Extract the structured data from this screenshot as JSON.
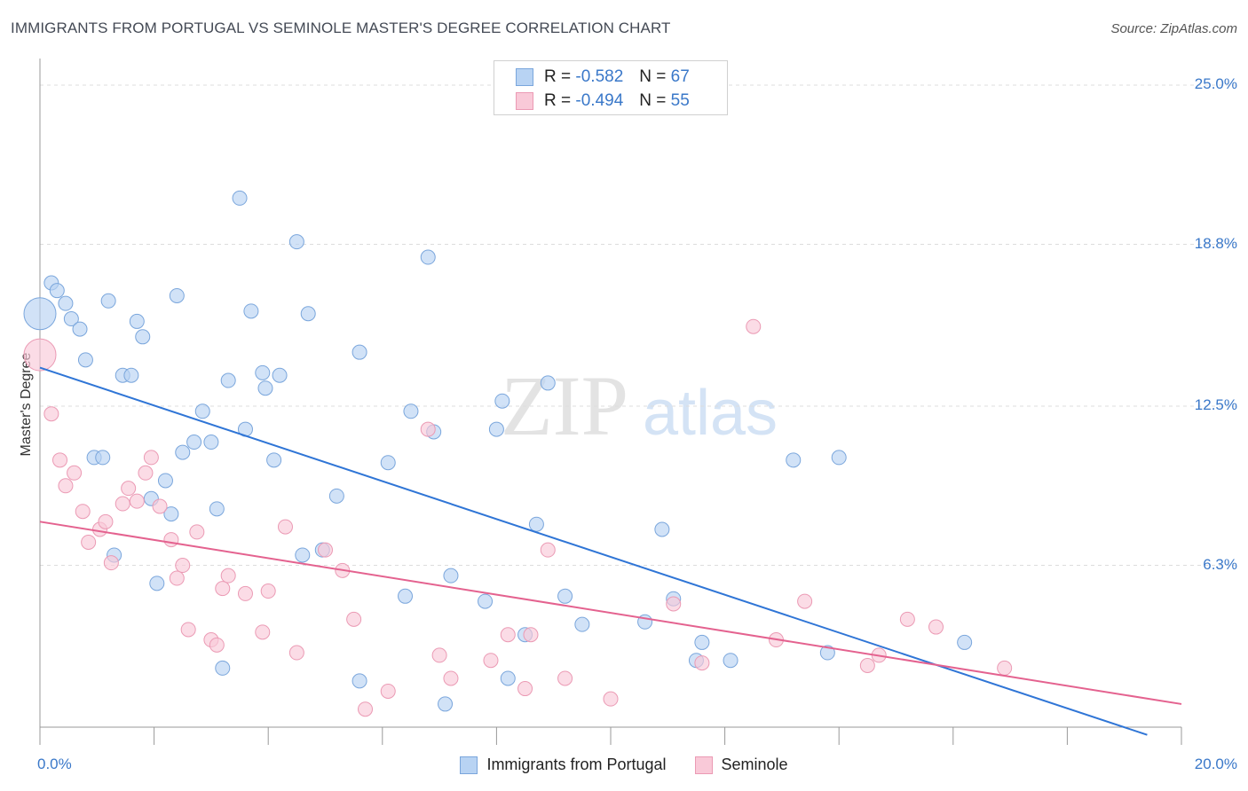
{
  "title": "IMMIGRANTS FROM PORTUGAL VS SEMINOLE MASTER'S DEGREE CORRELATION CHART",
  "source": "Source: ZipAtlas.com",
  "watermark": {
    "zip": "ZIP",
    "atlas": "atlas"
  },
  "colors": {
    "blue_fill": "#b8d3f3",
    "blue_stroke": "#7aa6dc",
    "blue_line": "#2f75d6",
    "pink_fill": "#f9c9d8",
    "pink_stroke": "#eb9ab4",
    "pink_line": "#e4628f",
    "axis_text": "#3a78c9",
    "grid": "#dddddd"
  },
  "legend": {
    "rows": [
      {
        "r_label": "R =",
        "r_value": "-0.582",
        "n_label": "N =",
        "n_value": "67",
        "series": "blue"
      },
      {
        "r_label": "R =",
        "r_value": "-0.494",
        "n_label": "N =",
        "n_value": "55",
        "series": "pink"
      }
    ]
  },
  "chart_data": {
    "type": "scatter",
    "title": "IMMIGRANTS FROM PORTUGAL VS SEMINOLE MASTER'S DEGREE CORRELATION CHART",
    "xlabel": "",
    "ylabel": "Master's Degree",
    "xlim": [
      0,
      20
    ],
    "ylim": [
      0,
      25
    ],
    "x_ticks": [
      "0.0%",
      "20.0%"
    ],
    "y_ticks": [
      {
        "value": 25.0,
        "label": "25.0%"
      },
      {
        "value": 18.8,
        "label": "18.8%"
      },
      {
        "value": 12.5,
        "label": "12.5%"
      },
      {
        "value": 6.3,
        "label": "6.3%"
      }
    ],
    "grid": true,
    "legend_position": "top-center",
    "series": [
      {
        "name": "Immigrants from Portugal",
        "color": "#b8d3f3",
        "trend": {
          "x": [
            0,
            19.4
          ],
          "y": [
            14.0,
            -0.3
          ]
        },
        "points": [
          {
            "x": 0.0,
            "y": 16.1,
            "big": true
          },
          {
            "x": 0.2,
            "y": 17.3
          },
          {
            "x": 0.3,
            "y": 17.0
          },
          {
            "x": 0.45,
            "y": 16.5
          },
          {
            "x": 0.55,
            "y": 15.9
          },
          {
            "x": 0.7,
            "y": 15.5
          },
          {
            "x": 0.8,
            "y": 14.3
          },
          {
            "x": 1.2,
            "y": 16.6
          },
          {
            "x": 1.7,
            "y": 15.8
          },
          {
            "x": 1.8,
            "y": 15.2
          },
          {
            "x": 1.45,
            "y": 13.7
          },
          {
            "x": 1.6,
            "y": 13.7
          },
          {
            "x": 0.95,
            "y": 10.5
          },
          {
            "x": 1.1,
            "y": 10.5
          },
          {
            "x": 2.4,
            "y": 16.8
          },
          {
            "x": 2.2,
            "y": 9.6
          },
          {
            "x": 1.95,
            "y": 8.9
          },
          {
            "x": 2.3,
            "y": 8.3
          },
          {
            "x": 1.3,
            "y": 6.7
          },
          {
            "x": 2.05,
            "y": 5.6
          },
          {
            "x": 2.5,
            "y": 10.7
          },
          {
            "x": 2.7,
            "y": 11.1
          },
          {
            "x": 2.85,
            "y": 12.3
          },
          {
            "x": 3.0,
            "y": 11.1
          },
          {
            "x": 3.1,
            "y": 8.5
          },
          {
            "x": 3.3,
            "y": 13.5
          },
          {
            "x": 3.5,
            "y": 20.6
          },
          {
            "x": 3.6,
            "y": 11.6
          },
          {
            "x": 3.7,
            "y": 16.2
          },
          {
            "x": 3.9,
            "y": 13.8
          },
          {
            "x": 3.95,
            "y": 13.2
          },
          {
            "x": 4.2,
            "y": 13.7
          },
          {
            "x": 4.1,
            "y": 10.4
          },
          {
            "x": 4.5,
            "y": 18.9
          },
          {
            "x": 4.7,
            "y": 16.1
          },
          {
            "x": 4.6,
            "y": 6.7
          },
          {
            "x": 4.95,
            "y": 6.9
          },
          {
            "x": 5.2,
            "y": 9.0
          },
          {
            "x": 5.6,
            "y": 14.6
          },
          {
            "x": 3.2,
            "y": 2.3
          },
          {
            "x": 5.6,
            "y": 1.8
          },
          {
            "x": 6.1,
            "y": 10.3
          },
          {
            "x": 6.4,
            "y": 5.1
          },
          {
            "x": 6.5,
            "y": 12.3
          },
          {
            "x": 6.8,
            "y": 18.3
          },
          {
            "x": 6.9,
            "y": 11.5
          },
          {
            "x": 7.1,
            "y": 0.9
          },
          {
            "x": 7.2,
            "y": 5.9
          },
          {
            "x": 7.8,
            "y": 4.9
          },
          {
            "x": 8.0,
            "y": 11.6
          },
          {
            "x": 8.1,
            "y": 12.7
          },
          {
            "x": 8.2,
            "y": 1.9
          },
          {
            "x": 8.5,
            "y": 3.6
          },
          {
            "x": 8.7,
            "y": 7.9
          },
          {
            "x": 8.9,
            "y": 13.4
          },
          {
            "x": 9.2,
            "y": 5.1
          },
          {
            "x": 9.5,
            "y": 4.0
          },
          {
            "x": 10.6,
            "y": 4.1
          },
          {
            "x": 10.9,
            "y": 7.7
          },
          {
            "x": 11.1,
            "y": 5.0
          },
          {
            "x": 11.5,
            "y": 2.6
          },
          {
            "x": 11.6,
            "y": 3.3
          },
          {
            "x": 12.1,
            "y": 2.6
          },
          {
            "x": 13.2,
            "y": 10.4
          },
          {
            "x": 13.8,
            "y": 2.9
          },
          {
            "x": 14.0,
            "y": 10.5
          },
          {
            "x": 16.2,
            "y": 3.3
          }
        ]
      },
      {
        "name": "Seminole",
        "color": "#f9c9d8",
        "trend": {
          "x": [
            0,
            20
          ],
          "y": [
            8.0,
            0.9
          ]
        },
        "points": [
          {
            "x": 0.0,
            "y": 14.5,
            "big": true
          },
          {
            "x": 0.2,
            "y": 12.2
          },
          {
            "x": 0.35,
            "y": 10.4
          },
          {
            "x": 0.45,
            "y": 9.4
          },
          {
            "x": 0.6,
            "y": 9.9
          },
          {
            "x": 0.75,
            "y": 8.4
          },
          {
            "x": 0.85,
            "y": 7.2
          },
          {
            "x": 1.05,
            "y": 7.7
          },
          {
            "x": 1.15,
            "y": 8.0
          },
          {
            "x": 1.25,
            "y": 6.4
          },
          {
            "x": 1.45,
            "y": 8.7
          },
          {
            "x": 1.55,
            "y": 9.3
          },
          {
            "x": 1.7,
            "y": 8.8
          },
          {
            "x": 1.85,
            "y": 9.9
          },
          {
            "x": 1.95,
            "y": 10.5
          },
          {
            "x": 2.1,
            "y": 8.6
          },
          {
            "x": 2.3,
            "y": 7.3
          },
          {
            "x": 2.4,
            "y": 5.8
          },
          {
            "x": 2.5,
            "y": 6.3
          },
          {
            "x": 2.6,
            "y": 3.8
          },
          {
            "x": 2.75,
            "y": 7.6
          },
          {
            "x": 3.0,
            "y": 3.4
          },
          {
            "x": 3.1,
            "y": 3.2
          },
          {
            "x": 3.2,
            "y": 5.4
          },
          {
            "x": 3.3,
            "y": 5.9
          },
          {
            "x": 3.6,
            "y": 5.2
          },
          {
            "x": 3.9,
            "y": 3.7
          },
          {
            "x": 4.0,
            "y": 5.3
          },
          {
            "x": 4.3,
            "y": 7.8
          },
          {
            "x": 4.5,
            "y": 2.9
          },
          {
            "x": 5.0,
            "y": 6.9
          },
          {
            "x": 5.3,
            "y": 6.1
          },
          {
            "x": 5.5,
            "y": 4.2
          },
          {
            "x": 5.7,
            "y": 0.7
          },
          {
            "x": 6.1,
            "y": 1.4
          },
          {
            "x": 6.8,
            "y": 11.6
          },
          {
            "x": 7.0,
            "y": 2.8
          },
          {
            "x": 7.2,
            "y": 1.9
          },
          {
            "x": 7.9,
            "y": 2.6
          },
          {
            "x": 8.2,
            "y": 3.6
          },
          {
            "x": 8.5,
            "y": 1.5
          },
          {
            "x": 8.6,
            "y": 3.6
          },
          {
            "x": 8.9,
            "y": 6.9
          },
          {
            "x": 9.2,
            "y": 1.9
          },
          {
            "x": 10.0,
            "y": 1.1
          },
          {
            "x": 11.1,
            "y": 4.8
          },
          {
            "x": 11.6,
            "y": 2.5
          },
          {
            "x": 12.5,
            "y": 15.6
          },
          {
            "x": 12.9,
            "y": 3.4
          },
          {
            "x": 13.4,
            "y": 4.9
          },
          {
            "x": 14.5,
            "y": 2.4
          },
          {
            "x": 14.7,
            "y": 2.8
          },
          {
            "x": 15.2,
            "y": 4.2
          },
          {
            "x": 15.7,
            "y": 3.9
          },
          {
            "x": 16.9,
            "y": 2.3
          }
        ]
      }
    ]
  }
}
